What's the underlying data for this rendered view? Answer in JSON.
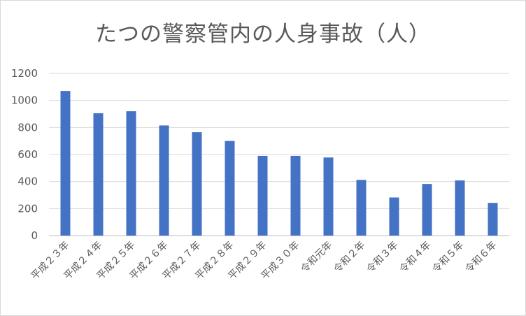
{
  "chart_data": {
    "type": "bar",
    "title": "たつの警察管内の人身事故（人）",
    "categories": [
      "平成２３年",
      "平成２４年",
      "平成２５年",
      "平成２６年",
      "平成２７年",
      "平成２８年",
      "平成２９年",
      "平成３０年",
      "令和元年",
      "令和２年",
      "令和３年",
      "令和４年",
      "令和５年",
      "令和６年"
    ],
    "values": [
      1070,
      905,
      920,
      815,
      765,
      700,
      590,
      590,
      578,
      412,
      282,
      382,
      408,
      242
    ],
    "ylim": [
      0,
      1200
    ],
    "yticks": [
      0,
      200,
      400,
      600,
      800,
      1000,
      1200
    ],
    "grid": true,
    "legend": "none",
    "bar_color": "#4472c4",
    "grid_color": "#d9d9d9"
  }
}
